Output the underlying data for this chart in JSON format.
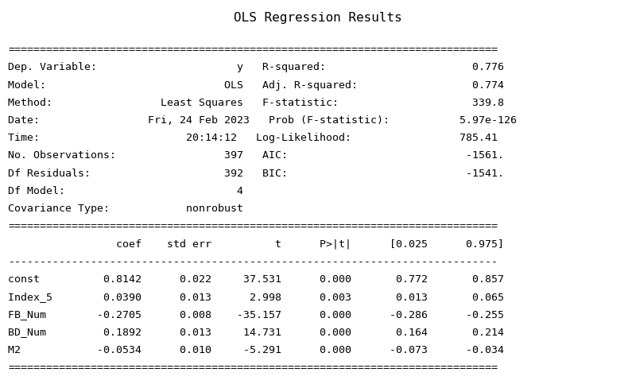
{
  "title": "OLS Regression Results",
  "bg_color": "#ffffff",
  "text_color": "#000000",
  "font_family": "DejaVu Sans Mono",
  "title_fontsize": 11.5,
  "body_fontsize": 9.5,
  "content": [
    "=============================================================================",
    "Dep. Variable:                      y   R-squared:                       0.776",
    "Model:                            OLS   Adj. R-squared:                  0.774",
    "Method:                 Least Squares   F-statistic:                     339.8",
    "Date:                 Fri, 24 Feb 2023   Prob (F-statistic):           5.97e-126",
    "Time:                       20:14:12   Log-Likelihood:                 785.41",
    "No. Observations:                 397   AIC:                            -1561.",
    "Df Residuals:                     392   BIC:                            -1541.",
    "Df Model:                           4                                         ",
    "Covariance Type:            nonrobust                                         ",
    "=============================================================================",
    "                 coef    std err          t      P>|t|      [0.025      0.975]",
    "-----------------------------------------------------------------------------",
    "const          0.8142      0.022     37.531      0.000       0.772       0.857",
    "Index_5        0.0390      0.013      2.998      0.003       0.013       0.065",
    "FB_Num        -0.2705      0.008    -35.157      0.000      -0.286      -0.255",
    "BD_Num         0.1892      0.013     14.731      0.000       0.164       0.214",
    "M2            -0.0534      0.010     -5.291      0.000      -0.073      -0.034",
    "============================================================================="
  ]
}
